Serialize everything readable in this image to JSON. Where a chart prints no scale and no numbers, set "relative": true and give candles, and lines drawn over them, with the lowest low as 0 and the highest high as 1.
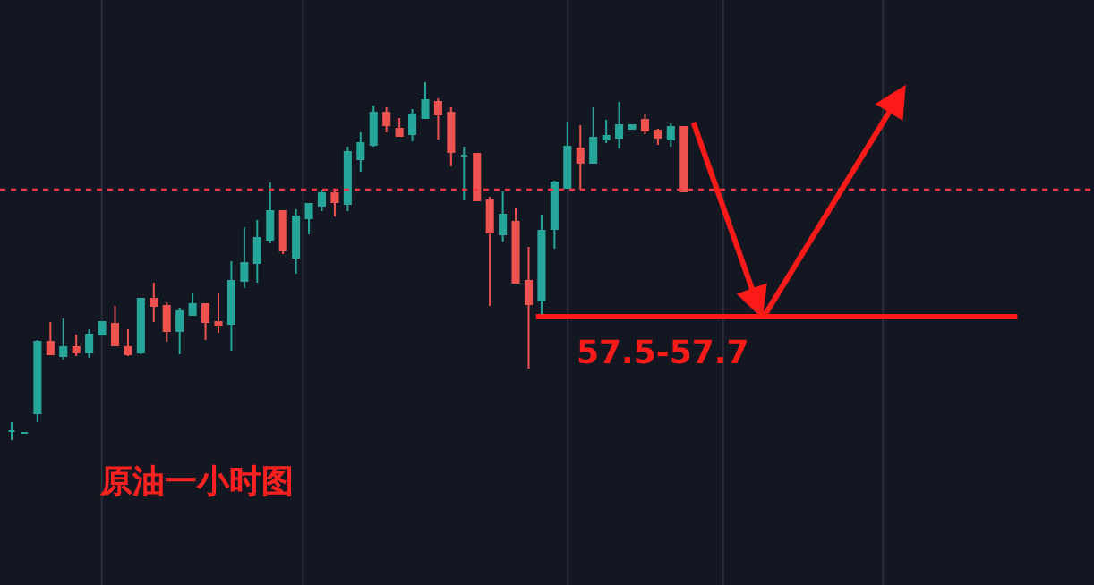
{
  "chart_data": {
    "type": "candlestick",
    "title": "原油一小时图",
    "relative": true,
    "categories": [
      null,
      null,
      null,
      null,
      null,
      null,
      null,
      null,
      null,
      null,
      null,
      null,
      null,
      null,
      null,
      null,
      null,
      null,
      null,
      null,
      null,
      null,
      null,
      null,
      null,
      null,
      null,
      null,
      null,
      null,
      null,
      null,
      null,
      null,
      null,
      null,
      null,
      null,
      null,
      null,
      null,
      null,
      null,
      null,
      null,
      null,
      null,
      null,
      null,
      null,
      null,
      null,
      null
    ],
    "colors": [
      "#26a69a",
      "#26a69a",
      "#26a69a",
      "#ef5350",
      "#26a69a",
      "#ef5350",
      "#26a69a",
      "#26a69a",
      "#ef5350",
      "#ef5350",
      "#26a69a",
      "#ef5350",
      "#ef5350",
      "#26a69a",
      "#26a69a",
      "#ef5350",
      "#ef5350",
      "#26a69a",
      "#26a69a",
      "#26a69a",
      "#26a69a",
      "#ef5350",
      "#26a69a",
      "#26a69a",
      "#26a69a",
      "#ef5350",
      "#26a69a",
      "#26a69a",
      "#26a69a",
      "#ef5350",
      "#ef5350",
      "#26a69a",
      "#26a69a",
      "#ef5350",
      "#ef5350",
      "#26a69a",
      "#ef5350",
      "#ef5350",
      "#26a69a",
      "#ef5350",
      "#ef5350",
      "#26a69a",
      "#26a69a",
      "#26a69a",
      "#ef5350",
      "#26a69a",
      "#26a69a",
      "#26a69a",
      "#26a69a",
      "#ef5350",
      "#ef5350",
      "#26a69a",
      "#ef5350"
    ],
    "annotations": [
      "57.5-57.7"
    ],
    "ohlc": [
      [
        0.025,
        0.05,
        0,
        0.025
      ],
      [
        0.02,
        0.02,
        0.02,
        0.02
      ],
      [
        0.075,
        0.28,
        0.05,
        0.275
      ],
      [
        0.275,
        0.33,
        0.24,
        0.24
      ],
      [
        0.235,
        0.34,
        0.225,
        0.26
      ],
      [
        0.26,
        0.295,
        0.235,
        0.245
      ],
      [
        0.245,
        0.31,
        0.23,
        0.295
      ],
      [
        0.295,
        0.33,
        0.295,
        0.33
      ],
      [
        0.325,
        0.375,
        0.265,
        0.265
      ],
      [
        0.26,
        0.31,
        0.235,
        0.24
      ],
      [
        0.245,
        0.395,
        0.24,
        0.395
      ],
      [
        0.395,
        0.44,
        0.33,
        0.375
      ],
      [
        0.375,
        0.385,
        0.275,
        0.305
      ],
      [
        0.305,
        0.37,
        0.24,
        0.36
      ],
      [
        0.35,
        0.41,
        0.35,
        0.38
      ],
      [
        0.38,
        0.38,
        0.28,
        0.33
      ],
      [
        0.33,
        0.41,
        0.3,
        0.32
      ],
      [
        0.325,
        0.5,
        0.25,
        0.445
      ],
      [
        0.445,
        0.595,
        0.425,
        0.495
      ],
      [
        0.495,
        0.615,
        0.44,
        0.565
      ],
      [
        0.56,
        0.72,
        0.55,
        0.64
      ],
      [
        0.64,
        0.64,
        0.52,
        0.53
      ],
      [
        0.51,
        0.645,
        0.465,
        0.625
      ],
      [
        0.62,
        0.66,
        0.575,
        0.66
      ],
      [
        0.655,
        0.7,
        0.64,
        0.69
      ],
      [
        0.69,
        0.7,
        0.625,
        0.665
      ],
      [
        0.66,
        0.82,
        0.64,
        0.805
      ],
      [
        0.785,
        0.86,
        0.75,
        0.83
      ],
      [
        0.825,
        0.935,
        0.82,
        0.915
      ],
      [
        0.915,
        0.93,
        0.86,
        0.88
      ],
      [
        0.87,
        0.9,
        0.85,
        0.85
      ],
      [
        0.855,
        0.925,
        0.835,
        0.91
      ],
      [
        0.9,
        1,
        0.9,
        0.95
      ],
      [
        0.945,
        0.955,
        0.84,
        0.91
      ],
      [
        0.915,
        0.93,
        0.765,
        0.805
      ],
      [
        0.795,
        0.82,
        0.67,
        0.795
      ],
      [
        0.8,
        0.8,
        0.67,
        0.67
      ],
      [
        0.67,
        0.68,
        0.375,
        0.58
      ],
      [
        0.575,
        0.695,
        0.555,
        0.63
      ],
      [
        0.61,
        0.65,
        0.44,
        0.44
      ],
      [
        0.445,
        0.54,
        0.2,
        0.38
      ],
      [
        0.39,
        0.63,
        0.35,
        0.585
      ],
      [
        0.59,
        0.725,
        0.535,
        0.72
      ],
      [
        0.705,
        0.89,
        0.705,
        0.82
      ],
      [
        0.815,
        0.88,
        0.7,
        0.775
      ],
      [
        0.775,
        0.93,
        0.775,
        0.845
      ],
      [
        0.84,
        0.895,
        0.83,
        0.85
      ],
      [
        0.845,
        0.945,
        0.815,
        0.88
      ],
      [
        0.87,
        0.88,
        0.87,
        0.88
      ],
      [
        0.895,
        0.91,
        0.855,
        0.865
      ],
      [
        0.865,
        0.87,
        0.825,
        0.845
      ],
      [
        0.84,
        0.885,
        0.82,
        0.875
      ],
      [
        0.875,
        0.875,
        0.695,
        0.695
      ]
    ],
    "ref_lines": [
      {
        "axis": "y",
        "value": 0.7,
        "color": "#f23645",
        "line_style": "dotted"
      },
      {
        "axis": "y",
        "value": 0.345,
        "color": "#ff1a1a",
        "line_style": "solid"
      }
    ]
  }
}
